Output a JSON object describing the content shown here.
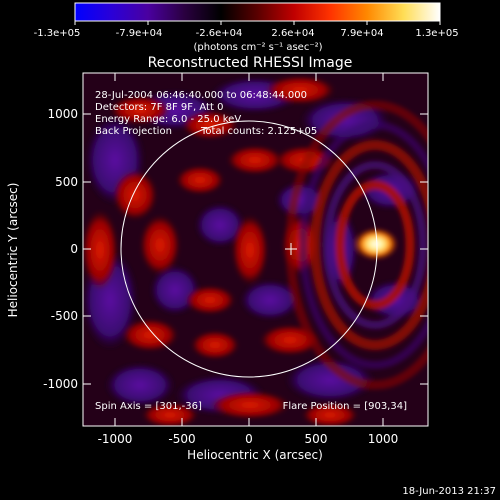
{
  "colorbar": {
    "tick_labels": [
      "-1.3e+05",
      "-7.9e+04",
      "-2.6e+04",
      "2.6e+04",
      "7.9e+04",
      "1.3e+05"
    ],
    "units_label": "(photons cm⁻² s⁻¹ asec⁻²)",
    "gradient_colors": [
      "#0000ff",
      "#2a00d8",
      "#4a00a0",
      "#2a0040",
      "#000000",
      "#5a0000",
      "#c00000",
      "#ff3300",
      "#ff8800",
      "#ffdd55",
      "#ffffff"
    ]
  },
  "plot": {
    "title": "Reconstructed RHESSI Image",
    "info_lines": [
      "28-Jul-2004 06:46:40.000 to 06:48:44.000",
      "Detectors: 7F 8F 9F, Att 0",
      "Energy Range: 6.0 - 25.0 keV",
      "Back Projection"
    ],
    "total_counts": "Total counts: 2.125+05",
    "spin_axis": "Spin Axis = [301,-36]",
    "flare_position": "Flare Position = [903,34]",
    "x_axis_label": "Heliocentric X (arcsec)",
    "y_axis_label": "Heliocentric Y (arcsec)",
    "x_ticks": [
      "-1000",
      "-500",
      "0",
      "500",
      "1000"
    ],
    "y_ticks": [
      "1000",
      "500",
      "0",
      "-500",
      "-1000"
    ]
  },
  "footer": {
    "timestamp": "18-Jun-2013 21:37"
  }
}
